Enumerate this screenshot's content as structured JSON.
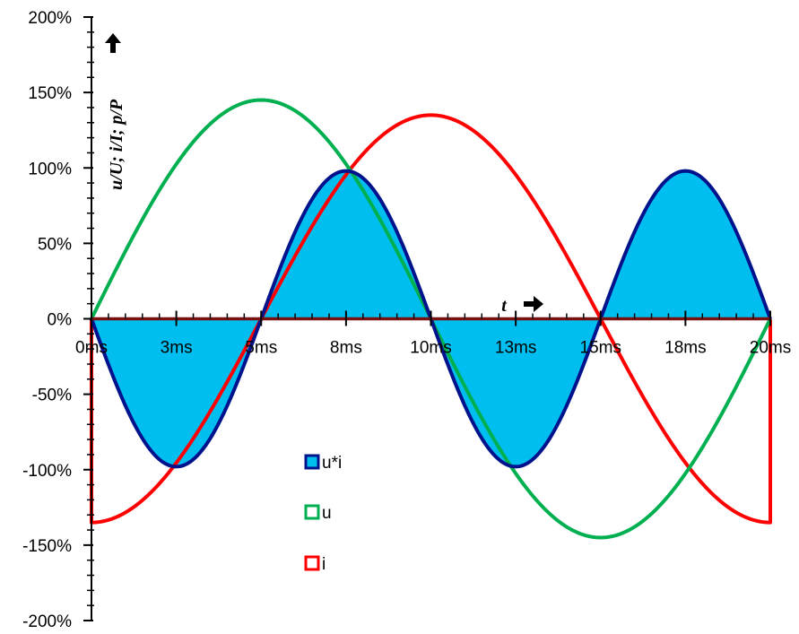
{
  "chart_data": {
    "type": "area",
    "title": "",
    "xlabel": "t",
    "ylabel": "u/U; i/I; p/P",
    "xlim": [
      0,
      20
    ],
    "ylim": [
      -200,
      200
    ],
    "x_unit": "ms",
    "y_unit": "%",
    "x_ticks": [
      "0ms",
      "3ms",
      "5ms",
      "8ms",
      "10ms",
      "13ms",
      "15ms",
      "18ms",
      "20ms"
    ],
    "y_ticks": [
      "200%",
      "150%",
      "100%",
      "50%",
      "0%",
      "-50%",
      "-100%",
      "-150%",
      "-200%"
    ],
    "grid": false,
    "legend_position": "center",
    "period_ms": 20,
    "series": [
      {
        "name": "u*i",
        "kind": "filled",
        "amplitude": 98,
        "function": "-A*sin(2*pi*2t/T)",
        "color_fill": "#00BFF0",
        "color_line": "#00128C"
      },
      {
        "name": "u",
        "kind": "line",
        "amplitude": 145,
        "function": "A*sin(2*pi*t/T)",
        "color_line": "#00B050"
      },
      {
        "name": "i",
        "kind": "line",
        "amplitude": 135,
        "function": "-A*cos(2*pi*t/T)",
        "color_line": "#FF0000"
      }
    ]
  }
}
